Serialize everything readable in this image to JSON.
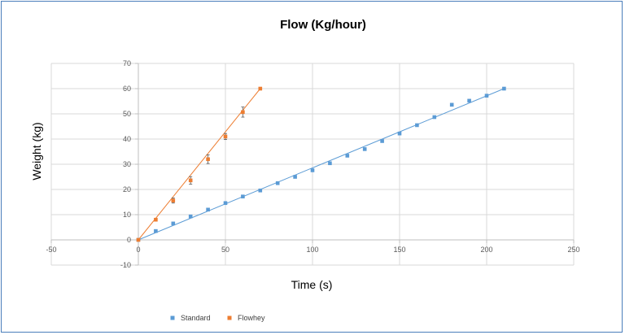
{
  "chart_data": {
    "type": "scatter",
    "title": "Flow (Kg/hour)",
    "xlabel": "Time (s)",
    "ylabel": "Weight (kg)",
    "xlim": [
      -50,
      250
    ],
    "ylim": [
      -10,
      70
    ],
    "x_ticks": [
      -50,
      0,
      50,
      100,
      150,
      200,
      250
    ],
    "y_ticks": [
      -10,
      0,
      10,
      20,
      30,
      40,
      50,
      60,
      70
    ],
    "grid": true,
    "legend_position": "bottom",
    "series": [
      {
        "name": "Standard",
        "color": "#5b9bd5",
        "x": [
          0,
          10,
          20,
          30,
          40,
          50,
          60,
          70,
          80,
          90,
          100,
          110,
          120,
          130,
          140,
          150,
          160,
          170,
          180,
          190,
          200,
          210
        ],
        "y": [
          0,
          3.5,
          6.5,
          9.3,
          12,
          14.6,
          17.2,
          19.6,
          22.5,
          25,
          27.6,
          30.4,
          33.4,
          36,
          39.2,
          42.2,
          45.5,
          48.7,
          53.6,
          55.2,
          57.2,
          60
        ],
        "error": 0.5,
        "trendline": [
          [
            0,
            0
          ],
          [
            210,
            60
          ]
        ]
      },
      {
        "name": "Flowhey",
        "color": "#ed7d31",
        "x": [
          0,
          10,
          20,
          30,
          40,
          50,
          60,
          70
        ],
        "y": [
          0,
          8,
          15.6,
          23.6,
          32,
          41,
          50.7,
          60
        ],
        "error": [
          0,
          0.5,
          1,
          1.5,
          1.7,
          1.2,
          2,
          0.3
        ],
        "trendline": [
          [
            0,
            0
          ],
          [
            70,
            60
          ]
        ]
      }
    ]
  }
}
